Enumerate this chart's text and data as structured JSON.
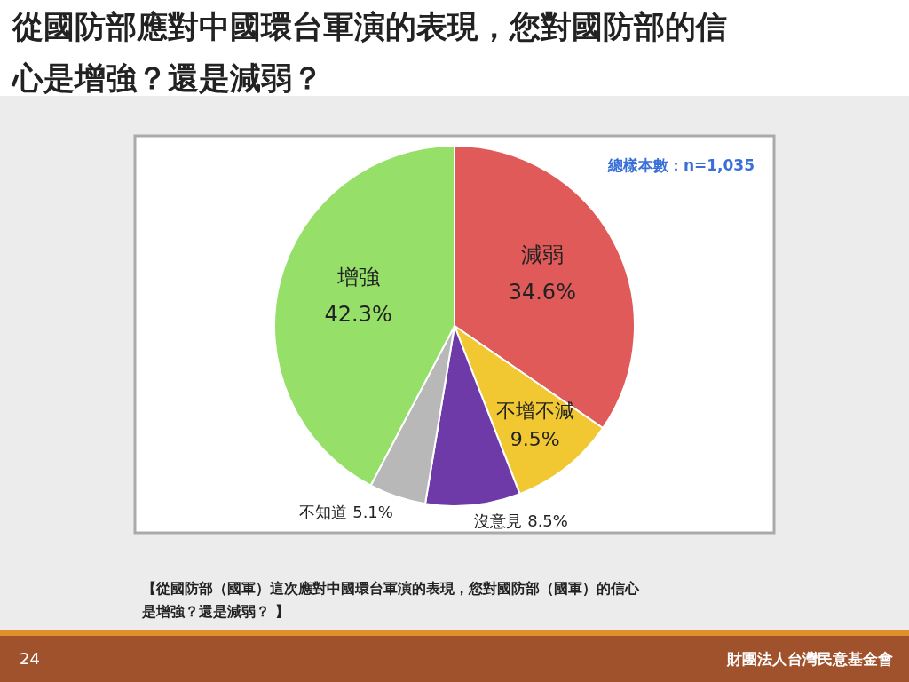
{
  "chart_data": {
    "type": "pie",
    "title": "從國防部應對中國環台軍演的表現，您對國防部的信心是增強？還是減弱？",
    "categories": [
      "減弱",
      "不增不減",
      "沒意見",
      "不知道",
      "增強"
    ],
    "values": [
      34.6,
      9.5,
      8.5,
      5.1,
      42.3
    ],
    "colors": [
      "#e05a5a",
      "#f2c832",
      "#6e3aa8",
      "#b8b8b8",
      "#96e06a"
    ],
    "value_labels": [
      "34.6%",
      "9.5%",
      "8.5%",
      "5.1%",
      "42.3%"
    ],
    "annotations": [
      "總樣本數：n=1,035",
      "【從國防部（國軍）這次應對中國環台軍演的表現，您對國防部（國軍）的信心是增強？還是減弱？ 】",
      "24",
      "財團法人台灣民意基金會"
    ]
  }
}
